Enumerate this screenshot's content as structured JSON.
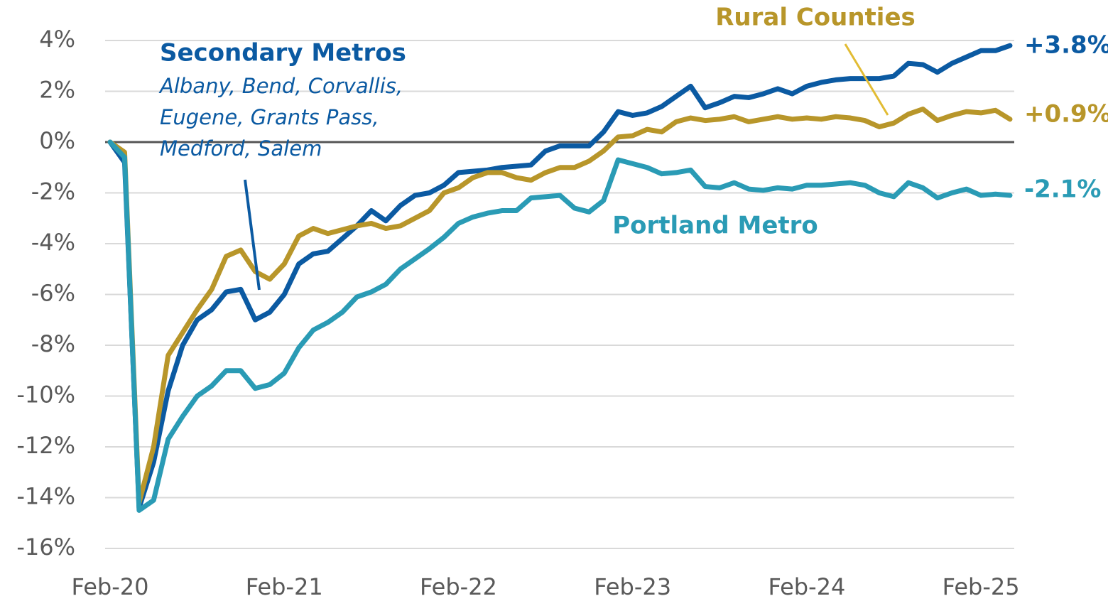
{
  "chart_data": {
    "type": "line",
    "categories": [
      "Feb-20",
      null,
      null,
      null,
      null,
      null,
      null,
      null,
      null,
      null,
      null,
      null,
      "Feb-21",
      null,
      null,
      null,
      null,
      null,
      null,
      null,
      null,
      null,
      null,
      null,
      "Feb-22",
      null,
      null,
      null,
      null,
      null,
      null,
      null,
      null,
      null,
      null,
      null,
      "Feb-23",
      null,
      null,
      null,
      null,
      null,
      null,
      null,
      null,
      null,
      null,
      null,
      "Feb-24",
      null,
      null,
      null,
      null,
      null,
      null,
      null,
      null,
      null,
      null,
      null,
      "Feb-25",
      null,
      null
    ],
    "ylim": [
      -16,
      4
    ],
    "yticks": [
      {
        "value": -16,
        "label": "-16%"
      },
      {
        "value": -14,
        "label": "-14%"
      },
      {
        "value": -12,
        "label": "-12%"
      },
      {
        "value": -10,
        "label": "-10%"
      },
      {
        "value": -8,
        "label": "-8%"
      },
      {
        "value": -6,
        "label": "-6%"
      },
      {
        "value": -4,
        "label": "-4%"
      },
      {
        "value": -2,
        "label": "-2%"
      },
      {
        "value": 0,
        "label": "0%"
      },
      {
        "value": 2,
        "label": "2%"
      },
      {
        "value": 4,
        "label": "4%"
      }
    ],
    "grid": true,
    "series": [
      {
        "name": "Secondary Metros",
        "color": "#0b5aa2",
        "end_label": "+3.8%",
        "values": [
          0,
          -0.8,
          -14.4,
          -12.6,
          -9.8,
          -8.0,
          -7.0,
          -6.6,
          -5.9,
          -5.8,
          -7.0,
          -6.7,
          -6.0,
          -4.8,
          -4.4,
          -4.3,
          -3.8,
          -3.3,
          -2.7,
          -3.1,
          -2.5,
          -2.1,
          -2.0,
          -1.7,
          -1.2,
          -1.15,
          -1.1,
          -1.0,
          -0.95,
          -0.9,
          -0.35,
          -0.15,
          -0.15,
          -0.15,
          0.4,
          1.2,
          1.05,
          1.15,
          1.4,
          1.8,
          2.2,
          1.35,
          1.55,
          1.8,
          1.75,
          1.9,
          2.1,
          1.9,
          2.2,
          2.35,
          2.45,
          2.5,
          2.5,
          2.5,
          2.6,
          3.1,
          3.05,
          2.75,
          3.1,
          3.35,
          3.6,
          3.6,
          3.8
        ]
      },
      {
        "name": "Rural Counties",
        "color": "#b8962a",
        "end_label": "+0.9%",
        "values": [
          0,
          -0.4,
          -14.2,
          -12.0,
          -8.4,
          -7.5,
          -6.6,
          -5.8,
          -4.5,
          -4.25,
          -5.1,
          -5.4,
          -4.8,
          -3.7,
          -3.4,
          -3.6,
          -3.45,
          -3.3,
          -3.2,
          -3.4,
          -3.3,
          -3.0,
          -2.7,
          -2.0,
          -1.8,
          -1.4,
          -1.2,
          -1.2,
          -1.4,
          -1.5,
          -1.2,
          -1.0,
          -1.0,
          -0.75,
          -0.35,
          0.2,
          0.25,
          0.5,
          0.4,
          0.8,
          0.95,
          0.85,
          0.9,
          1.0,
          0.8,
          0.9,
          1.0,
          0.9,
          0.95,
          0.9,
          1.0,
          0.95,
          0.85,
          0.6,
          0.75,
          1.1,
          1.3,
          0.85,
          1.05,
          1.2,
          1.15,
          1.25,
          0.9
        ]
      },
      {
        "name": "Portland Metro",
        "color": "#2a9bb5",
        "end_label": "-2.1%",
        "values": [
          0,
          -0.6,
          -14.5,
          -14.1,
          -11.7,
          -10.8,
          -10.0,
          -9.6,
          -9.0,
          -9.0,
          -9.7,
          -9.55,
          -9.1,
          -8.1,
          -7.4,
          -7.1,
          -6.7,
          -6.1,
          -5.9,
          -5.6,
          -5.0,
          -4.6,
          -4.2,
          -3.75,
          -3.2,
          -2.95,
          -2.8,
          -2.7,
          -2.7,
          -2.2,
          -2.15,
          -2.1,
          -2.6,
          -2.75,
          -2.3,
          -0.7,
          -0.85,
          -1.0,
          -1.25,
          -1.2,
          -1.1,
          -1.75,
          -1.8,
          -1.6,
          -1.85,
          -1.9,
          -1.8,
          -1.85,
          -1.7,
          -1.7,
          -1.65,
          -1.6,
          -1.7,
          -2.0,
          -2.15,
          -1.6,
          -1.8,
          -2.2,
          -2.0,
          -1.85,
          -2.1,
          -2.05,
          -2.1
        ]
      }
    ],
    "annotations": [
      "Albany, Bend, Corvallis,",
      "Eugene, Grants Pass,",
      "Medford, Salem"
    ]
  }
}
